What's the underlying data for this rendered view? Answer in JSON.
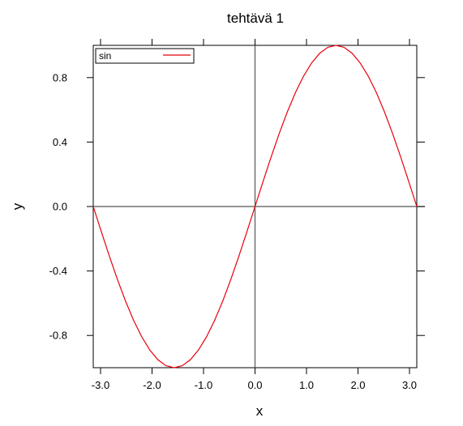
{
  "chart_data": {
    "type": "line",
    "title": "tehtävä 1",
    "xlabel": "x",
    "ylabel": "y",
    "xlim": [
      -3.14159,
      3.14159
    ],
    "ylim": [
      -1.0,
      1.0
    ],
    "xticks": [
      -3.0,
      -2.0,
      -1.0,
      0.0,
      1.0,
      2.0,
      3.0
    ],
    "xtick_labels": [
      "-3.0",
      "-2.0",
      "-1.0",
      "0.0",
      "1.0",
      "2.0",
      "3.0"
    ],
    "yticks": [
      -0.8,
      -0.4,
      0.0,
      0.4,
      0.8
    ],
    "ytick_labels": [
      "-0.8",
      "-0.4",
      "0.0",
      "0.4",
      "0.8"
    ],
    "grid": false,
    "legend": {
      "placement": "top-left"
    },
    "reference_lines": {
      "x": 0,
      "y": 0
    },
    "series": [
      {
        "name": "sin",
        "color": "#e8000b",
        "x": [
          -3.1416,
          -2.9845,
          -2.8274,
          -2.6704,
          -2.5133,
          -2.3562,
          -2.1991,
          -2.042,
          -1.885,
          -1.7279,
          -1.5708,
          -1.4137,
          -1.2566,
          -1.0996,
          -0.9425,
          -0.7854,
          -0.6283,
          -0.4712,
          -0.3142,
          -0.1571,
          0.0,
          0.1571,
          0.3142,
          0.4712,
          0.6283,
          0.7854,
          0.9425,
          1.0996,
          1.2566,
          1.4137,
          1.5708,
          1.7279,
          1.885,
          2.042,
          2.1991,
          2.3562,
          2.5133,
          2.6704,
          2.8274,
          2.9845,
          3.1416
        ],
        "y": [
          0.0,
          -0.1564,
          -0.309,
          -0.454,
          -0.5878,
          -0.7071,
          -0.809,
          -0.891,
          -0.9511,
          -0.9877,
          -1.0,
          -0.9877,
          -0.9511,
          -0.891,
          -0.809,
          -0.7071,
          -0.5878,
          -0.454,
          -0.309,
          -0.1564,
          0.0,
          0.1564,
          0.309,
          0.454,
          0.5878,
          0.7071,
          0.809,
          0.891,
          0.9511,
          0.9877,
          1.0,
          0.9877,
          0.9511,
          0.891,
          0.809,
          0.7071,
          0.5878,
          0.454,
          0.309,
          0.1564,
          0.0
        ]
      }
    ]
  },
  "colors": {
    "axis": "#000000",
    "reference_line": "#555555",
    "series": "#e8000b"
  }
}
